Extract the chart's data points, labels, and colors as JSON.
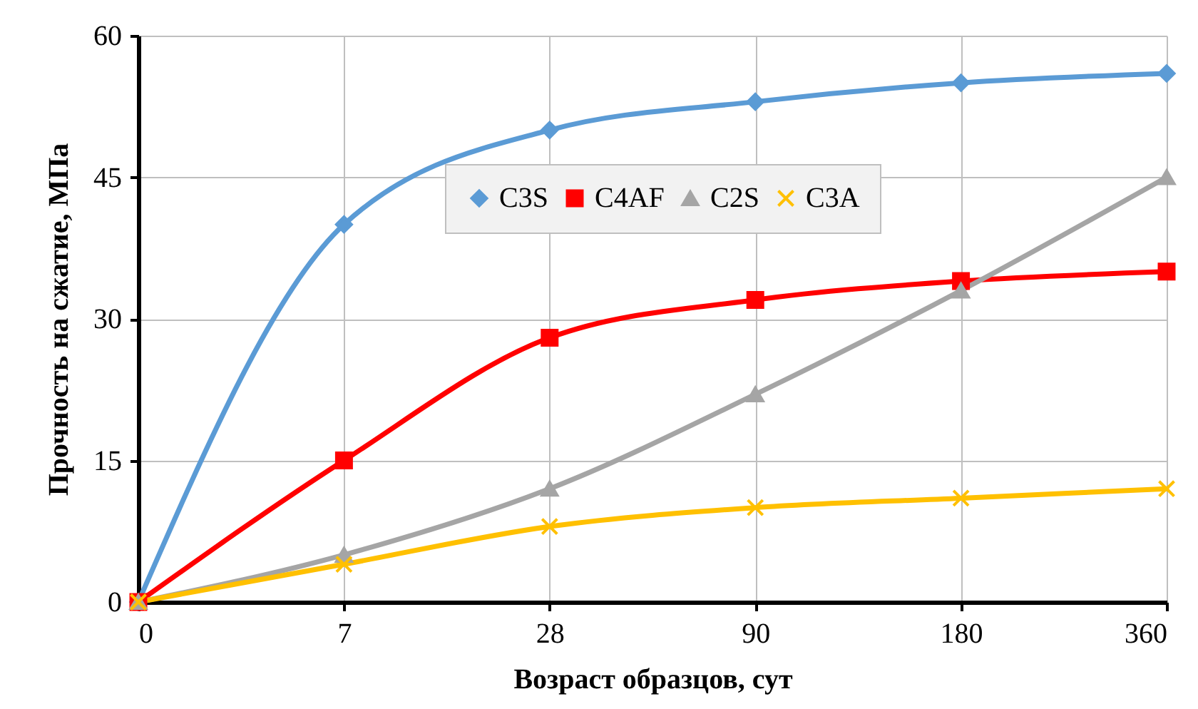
{
  "chart_data": {
    "type": "line",
    "xlabel": "Возраст образцов, сут",
    "ylabel": "Прочность на сжатие, МПа",
    "categories": [
      "0",
      "7",
      "28",
      "90",
      "180",
      "360"
    ],
    "ylim": [
      0,
      60
    ],
    "yticks": [
      0,
      15,
      30,
      45,
      60
    ],
    "grid": true,
    "legend": "top right",
    "line_style": "solid",
    "series": [
      {
        "name": "C3S",
        "color": "#5b9bd5",
        "marker": "diamond",
        "values": [
          0,
          40,
          50,
          53,
          55,
          56
        ]
      },
      {
        "name": "C4AF",
        "color": "#ff0000",
        "marker": "square",
        "values": [
          0,
          15,
          28,
          32,
          34,
          35
        ]
      },
      {
        "name": "C2S",
        "color": "#a5a5a5",
        "marker": "triangle",
        "values": [
          0,
          5,
          12,
          22,
          33,
          45
        ]
      },
      {
        "name": "C3A",
        "color": "#ffc000",
        "marker": "cross",
        "values": [
          0,
          4,
          8,
          10,
          11,
          12
        ]
      }
    ]
  }
}
